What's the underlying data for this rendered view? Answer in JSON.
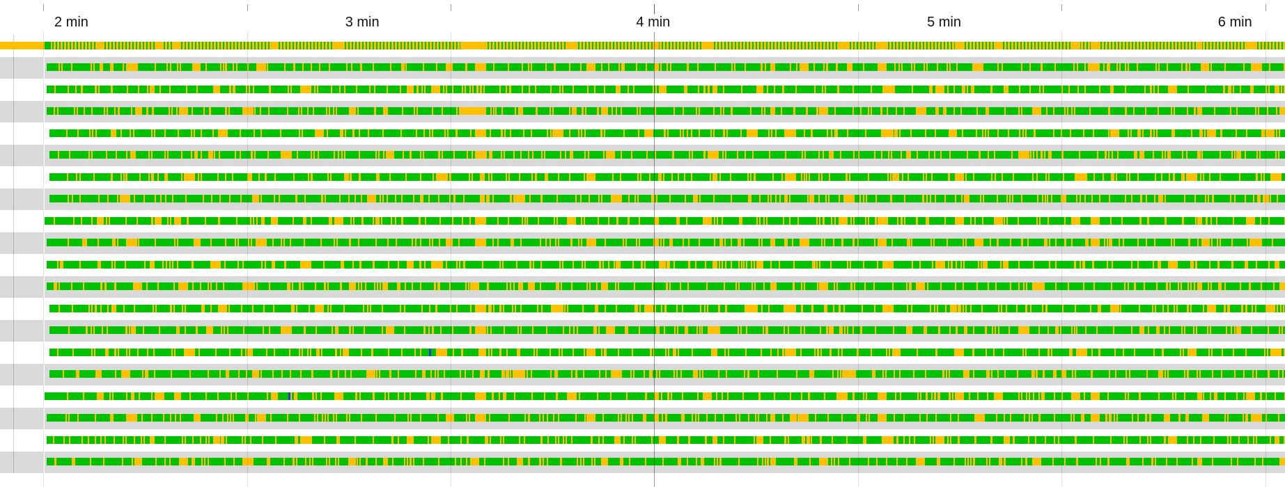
{
  "time_axis": {
    "unit": "min",
    "labels": [
      "2 min",
      "3 min",
      "4 min",
      "5 min",
      "6 min"
    ],
    "major_values": [
      2,
      3,
      4,
      5,
      6
    ],
    "minor_step_seconds": 6,
    "visible_start_seconds": 114,
    "visible_end_seconds": 378
  },
  "colors": {
    "running": "#00c200",
    "idle": "#ffc000",
    "blocked": "#1f3bd8",
    "row_alt_background": "#d9d9d9",
    "background": "#ffffff"
  },
  "legend_states": [
    "running",
    "idle",
    "blocked"
  ],
  "thread_rows": [
    {
      "index": 0,
      "start_seconds": 120.0,
      "idle_markers": [
        125,
        137,
        141,
        161,
        174,
        203,
        222,
        240,
        250,
        278,
        286,
        302,
        310,
        326,
        330,
        352,
        362,
        370
      ]
    },
    {
      "index": 1,
      "start_seconds": 120.5,
      "idle_markers": [
        131,
        145,
        158,
        197,
        203,
        226,
        240,
        264,
        270,
        286,
        306,
        330,
        353,
        363,
        372
      ]
    },
    {
      "index": 2,
      "start_seconds": 120.5,
      "idle_markers": [
        136,
        149,
        167,
        189,
        194,
        232,
        241,
        252,
        261,
        287,
        298,
        312,
        346,
        368
      ]
    },
    {
      "index": 3,
      "start_seconds": 120.5,
      "idle_markers": [
        133,
        142,
        155,
        177,
        184,
        202,
        212,
        229,
        264,
        274,
        294,
        318,
        352,
        369
      ]
    },
    {
      "index": 4,
      "start_seconds": 121.0,
      "idle_markers": [
        128,
        150,
        170,
        203,
        219,
        238,
        259,
        267,
        287,
        301,
        334,
        354,
        366
      ]
    },
    {
      "index": 5,
      "start_seconds": 121.0,
      "idle_markers": [
        132,
        148,
        163,
        185,
        203,
        230,
        251,
        276,
        292,
        315,
        340,
        360,
        374
      ]
    },
    {
      "index": 6,
      "start_seconds": 121.0,
      "idle_markers": [
        143,
        156,
        176,
        195,
        204,
        226,
        252,
        267,
        289,
        302,
        327,
        350,
        367
      ]
    },
    {
      "index": 7,
      "start_seconds": 121.0,
      "idle_markers": [
        130,
        157,
        181,
        204,
        211,
        231,
        248,
        272,
        279,
        304,
        324,
        344,
        371
      ]
    }
  ],
  "blocked_markers": [
    {
      "row": 14,
      "time_seconds": 193.5
    },
    {
      "row": 16,
      "time_seconds": 164.5
    }
  ]
}
